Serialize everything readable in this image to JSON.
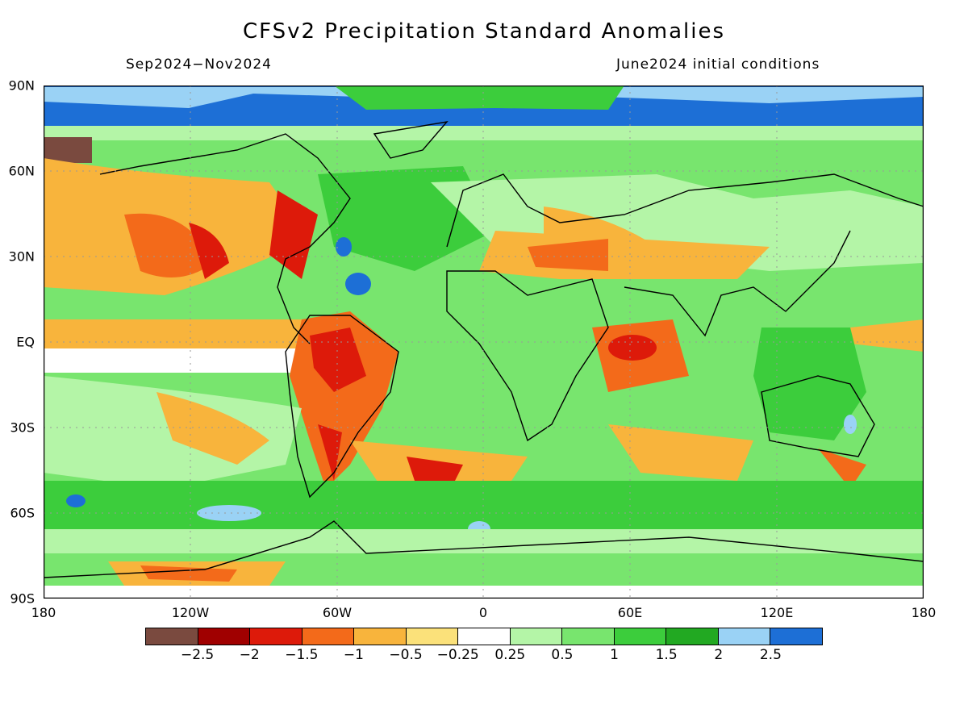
{
  "title": "CFSv2 Precipitation Standard Anomalies",
  "period": "Sep2024−Nov2024",
  "initial_conditions": "June2024 initial conditions",
  "y_axis_labels": [
    "90N",
    "60N",
    "30N",
    "EQ",
    "30S",
    "60S",
    "90S"
  ],
  "x_axis_labels": [
    "180",
    "120W",
    "60W",
    "0",
    "60E",
    "120E",
    "180"
  ],
  "colorbar": {
    "colors": [
      "#7a4a3f",
      "#a00000",
      "#dd1a0a",
      "#f36a1a",
      "#f8b43c",
      "#fbe17a",
      "#ffffff",
      "#b4f5a7",
      "#78e56e",
      "#3ccd3c",
      "#22a922",
      "#9ad2f5",
      "#1d6fd6"
    ],
    "labels": [
      "−2.5",
      "−2",
      "−1.5",
      "−1",
      "−0.5",
      "−0.25",
      "0.25",
      "0.5",
      "1",
      "1.5",
      "2",
      "2.5"
    ]
  }
}
